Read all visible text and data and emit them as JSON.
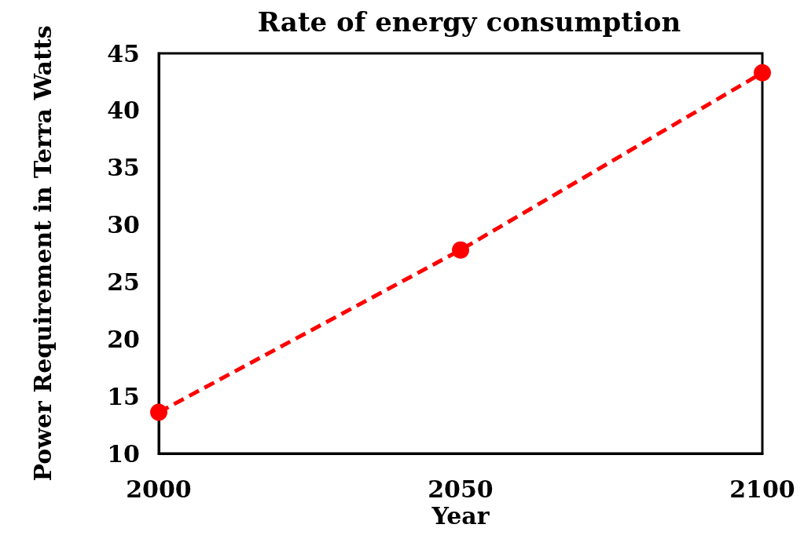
{
  "chart_data": {
    "type": "line",
    "title": "Rate of energy consumption",
    "xlabel": "Year",
    "ylabel": "Power Requirement in Terra Watts",
    "x": [
      2000,
      2050,
      2100
    ],
    "series": [
      {
        "color": "#ff0000",
        "values": [
          13.6,
          27.8,
          43.3
        ]
      }
    ],
    "xlim": [
      2000,
      2100
    ],
    "xticks": [
      2000,
      2050,
      2100
    ],
    "ylim": [
      10,
      45
    ],
    "yticks": [
      10,
      15,
      20,
      25,
      30,
      35,
      40,
      45
    ],
    "grid": false,
    "marker": "circle",
    "line_style": "dashed"
  }
}
